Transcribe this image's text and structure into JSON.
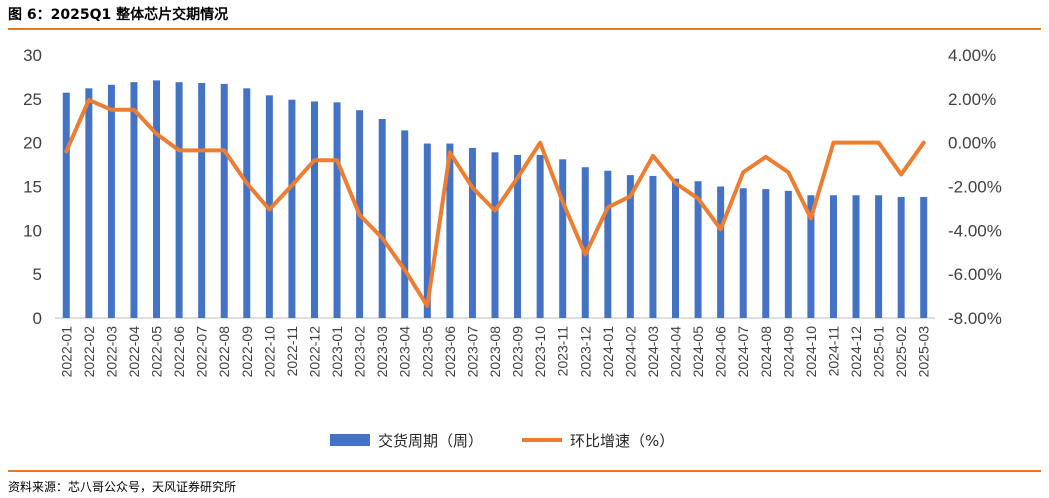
{
  "figure": {
    "title": "图 6：2025Q1 整体芯片交期情况",
    "source": "资料来源：芯八哥公众号，天风证券研究所"
  },
  "colors": {
    "bar": "#4472c4",
    "line": "#ed7d31",
    "rule": "#e87722"
  },
  "chart_data": {
    "type": "bar",
    "title": "",
    "categories": [
      "2022-01",
      "2022-02",
      "2022-03",
      "2022-04",
      "2022-05",
      "2022-06",
      "2022-07",
      "2022-08",
      "2022-09",
      "2022-10",
      "2022-11",
      "2022-12",
      "2023-01",
      "2023-02",
      "2023-03",
      "2023-04",
      "2023-05",
      "2023-06",
      "2023-07",
      "2023-08",
      "2023-09",
      "2023-10",
      "2023-11",
      "2023-12",
      "2024-01",
      "2024-02",
      "2024-03",
      "2024-04",
      "2024-05",
      "2024-06",
      "2024-07",
      "2024-08",
      "2024-09",
      "2024-10",
      "2024-11",
      "2024-12",
      "2025-01",
      "2025-02",
      "2025-03"
    ],
    "series": [
      {
        "name": "交货周期（周）",
        "type": "bar",
        "axis": "left",
        "values": [
          25.7,
          26.2,
          26.6,
          26.9,
          27.1,
          26.9,
          26.8,
          26.7,
          26.2,
          25.4,
          24.9,
          24.7,
          24.6,
          23.7,
          22.7,
          21.4,
          19.9,
          19.9,
          19.4,
          18.9,
          18.6,
          18.6,
          18.1,
          17.2,
          16.8,
          16.3,
          16.2,
          15.9,
          15.6,
          15.0,
          14.8,
          14.7,
          14.5,
          14.0,
          14.0,
          14.0,
          14.0,
          13.8,
          13.8
        ]
      },
      {
        "name": "环比增速（%）",
        "type": "line",
        "axis": "right",
        "values": [
          -0.4,
          1.95,
          1.5,
          1.5,
          0.4,
          -0.35,
          -0.35,
          -0.35,
          -1.85,
          -3.05,
          -1.95,
          -0.8,
          -0.8,
          -3.3,
          -4.35,
          -5.8,
          -7.45,
          -0.45,
          -2.05,
          -3.1,
          -1.6,
          0.0,
          -2.7,
          -5.1,
          -2.95,
          -2.45,
          -0.6,
          -1.85,
          -2.55,
          -3.95,
          -1.35,
          -0.65,
          -1.35,
          -3.45,
          0.0,
          0.0,
          0.0,
          -1.45,
          0.0
        ]
      }
    ],
    "y_left": {
      "ylim": [
        0,
        30
      ],
      "ticks": [
        "0",
        "5",
        "10",
        "15",
        "20",
        "25",
        "30"
      ]
    },
    "y_right": {
      "ylim": [
        -8,
        4
      ],
      "ticks": [
        "-8.00%",
        "-6.00%",
        "-4.00%",
        "-2.00%",
        "0.00%",
        "2.00%",
        "4.00%"
      ]
    },
    "grid": false,
    "legend": "bottom-center"
  }
}
